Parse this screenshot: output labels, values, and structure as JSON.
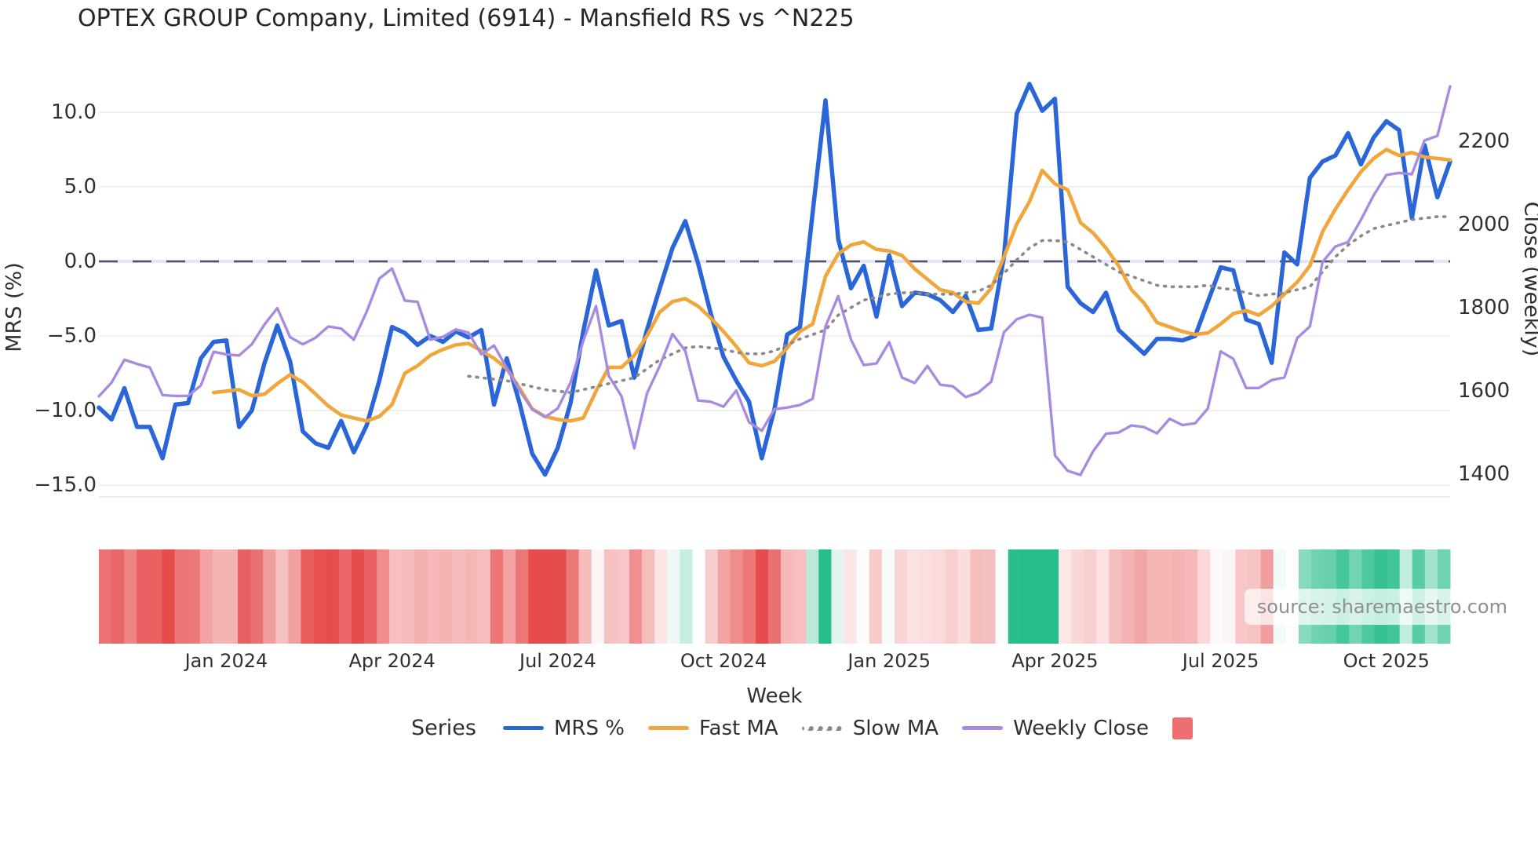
{
  "chart_data": {
    "type": "line",
    "title": "OPTEX GROUP Company, Limited (6914) - Mansfield RS vs ^N225",
    "xlabel": "Week",
    "ylabel_left": "MRS (%)",
    "ylabel_right": "Close (weekly)",
    "source": "source: sharemaestro.com",
    "legend_title": "Series",
    "weeks": 107,
    "x_ticks": [
      {
        "label": "Jan 2024",
        "week": 10
      },
      {
        "label": "Apr 2024",
        "week": 23
      },
      {
        "label": "Jul 2024",
        "week": 36
      },
      {
        "label": "Oct 2024",
        "week": 49
      },
      {
        "label": "Jan 2025",
        "week": 62
      },
      {
        "label": "Apr 2025",
        "week": 75
      },
      {
        "label": "Jul 2025",
        "week": 88
      },
      {
        "label": "Oct 2025",
        "week": 101
      }
    ],
    "y_left": {
      "ticks": [
        10.0,
        5.0,
        0.0,
        -5.0,
        -10.0,
        -15.0
      ],
      "zero_dashed": true,
      "range": [
        -15.8,
        12.6
      ]
    },
    "y_right": {
      "ticks": [
        2200,
        2000,
        1800,
        1600,
        1400
      ],
      "range": [
        1330,
        2350
      ]
    },
    "grid": true,
    "legend_position": "bottom",
    "zero_line_color": "#4d5266",
    "grid_color": "#e9ebef",
    "series": [
      {
        "name": "MRS %",
        "axis": "left",
        "color": "#2b66d9",
        "width": 5.5,
        "dash": "solid",
        "values": [
          -9.8,
          -10.6,
          -8.5,
          -11.1,
          -11.1,
          -13.2,
          -9.6,
          -9.5,
          -6.5,
          -5.4,
          -5.3,
          -11.1,
          -10.0,
          -6.8,
          -4.3,
          -6.7,
          -11.4,
          -12.2,
          -12.5,
          -10.7,
          -12.8,
          -11.0,
          -8.0,
          -4.4,
          -4.8,
          -5.6,
          -5.0,
          -5.4,
          -4.7,
          -5.1,
          -4.6,
          -9.6,
          -6.5,
          -9.5,
          -12.9,
          -14.3,
          -12.5,
          -9.5,
          -4.7,
          -0.6,
          -4.3,
          -4.0,
          -7.8,
          -4.6,
          -1.8,
          0.9,
          2.7,
          -0.1,
          -3.5,
          -6.4,
          -8.0,
          -9.4,
          -13.2,
          -9.9,
          -4.9,
          -4.4,
          3.3,
          10.8,
          1.5,
          -1.8,
          -0.3,
          -3.7,
          0.4,
          -3.0,
          -2.1,
          -2.2,
          -2.6,
          -3.4,
          -2.3,
          -4.6,
          -4.5,
          0.3,
          9.9,
          11.9,
          10.1,
          10.9,
          -1.7,
          -2.8,
          -3.4,
          -2.1,
          -4.6,
          -5.4,
          -6.2,
          -5.2,
          -5.2,
          -5.3,
          -5.0,
          -2.7,
          -0.4,
          -0.6,
          -3.9,
          -4.2,
          -6.8,
          0.6,
          -0.2,
          5.6,
          6.7,
          7.1,
          8.6,
          6.5,
          8.3,
          9.4,
          8.8,
          2.9,
          7.8,
          4.3,
          6.7
        ]
      },
      {
        "name": "Fast MA",
        "axis": "left",
        "color": "#f0a63b",
        "width": 4.6,
        "dash": "solid",
        "values": [
          null,
          null,
          null,
          null,
          null,
          null,
          null,
          null,
          null,
          -8.8,
          -8.7,
          -8.6,
          -9.0,
          -8.9,
          -8.2,
          -7.6,
          -8.1,
          -8.9,
          -9.7,
          -10.3,
          -10.5,
          -10.7,
          -10.4,
          -9.6,
          -7.5,
          -7.0,
          -6.3,
          -5.9,
          -5.6,
          -5.5,
          -6.0,
          -6.5,
          -7.2,
          -8.5,
          -9.9,
          -10.4,
          -10.6,
          -10.7,
          -10.5,
          -8.7,
          -7.1,
          -7.1,
          -6.3,
          -5.0,
          -3.4,
          -2.7,
          -2.5,
          -3.0,
          -3.8,
          -4.7,
          -5.7,
          -6.8,
          -7.0,
          -6.7,
          -5.8,
          -4.7,
          -4.2,
          -1.0,
          0.5,
          1.1,
          1.3,
          0.8,
          0.7,
          0.4,
          -0.5,
          -1.2,
          -1.9,
          -2.1,
          -2.7,
          -2.8,
          -1.8,
          0.3,
          2.5,
          4.0,
          6.1,
          5.2,
          4.8,
          2.6,
          1.9,
          0.9,
          -0.3,
          -1.9,
          -2.8,
          -4.1,
          -4.4,
          -4.7,
          -4.9,
          -4.8,
          -4.2,
          -3.5,
          -3.3,
          -3.6,
          -3.0,
          -2.2,
          -1.4,
          -0.3,
          2.0,
          3.5,
          4.8,
          6.0,
          6.9,
          7.5,
          7.1,
          7.3,
          7.0,
          6.9,
          6.8
        ]
      },
      {
        "name": "Slow MA",
        "axis": "left",
        "color": "#8a8a8a",
        "width": 3.6,
        "dash": "dotted",
        "values": [
          null,
          null,
          null,
          null,
          null,
          null,
          null,
          null,
          null,
          null,
          null,
          null,
          null,
          null,
          null,
          null,
          null,
          null,
          null,
          null,
          null,
          null,
          null,
          null,
          null,
          null,
          null,
          null,
          null,
          -7.7,
          -7.8,
          -7.9,
          -8.0,
          -8.2,
          -8.4,
          -8.6,
          -8.7,
          -8.8,
          -8.6,
          -8.4,
          -8.2,
          -8.0,
          -7.8,
          -7.2,
          -6.6,
          -6.2,
          -5.8,
          -5.7,
          -5.8,
          -5.9,
          -6.1,
          -6.2,
          -6.2,
          -6.0,
          -5.6,
          -5.2,
          -4.9,
          -4.6,
          -3.6,
          -3.1,
          -2.6,
          -2.4,
          -2.2,
          -2.1,
          -2.1,
          -2.2,
          -2.2,
          -2.2,
          -2.1,
          -2.0,
          -1.6,
          -0.8,
          0.1,
          0.9,
          1.4,
          1.4,
          1.3,
          0.8,
          0.3,
          -0.2,
          -0.7,
          -1.0,
          -1.3,
          -1.6,
          -1.7,
          -1.7,
          -1.7,
          -1.6,
          -1.8,
          -1.9,
          -2.1,
          -2.3,
          -2.2,
          -2.1,
          -1.9,
          -1.7,
          -0.7,
          0.3,
          1.1,
          1.7,
          2.2,
          2.4,
          2.6,
          2.8,
          2.9,
          3.0,
          3.0
        ]
      },
      {
        "name": "Weekly Close",
        "axis": "right",
        "color": "#a78be0",
        "width": 3.4,
        "dash": "solid",
        "values": [
          1587,
          1620,
          1675,
          1665,
          1656,
          1590,
          1588,
          1588,
          1613,
          1694,
          1688,
          1685,
          1712,
          1760,
          1799,
          1729,
          1712,
          1728,
          1755,
          1750,
          1723,
          1790,
          1870,
          1894,
          1817,
          1814,
          1723,
          1730,
          1748,
          1740,
          1688,
          1709,
          1655,
          1601,
          1556,
          1537,
          1558,
          1620,
          1720,
          1804,
          1636,
          1587,
          1462,
          1594,
          1660,
          1737,
          1696,
          1577,
          1574,
          1562,
          1601,
          1525,
          1504,
          1556,
          1560,
          1566,
          1581,
          1755,
          1828,
          1723,
          1662,
          1666,
          1717,
          1632,
          1619,
          1660,
          1615,
          1611,
          1585,
          1596,
          1622,
          1741,
          1772,
          1783,
          1776,
          1445,
          1408,
          1398,
          1455,
          1497,
          1500,
          1517,
          1513,
          1498,
          1533,
          1518,
          1522,
          1558,
          1695,
          1677,
          1607,
          1607,
          1626,
          1632,
          1727,
          1755,
          1910,
          1947,
          1958,
          2011,
          2070,
          2119,
          2124,
          2121,
          2202,
          2213,
          2332
        ]
      }
    ],
    "heatmap": {
      "source_series": "MRS %",
      "positive_color": "#28bd8c",
      "negative_color": "#e64c4c",
      "positive_saturation_at": 10,
      "negative_saturation_at": 12.5
    },
    "legend_extra_swatch_color": "#ee6f6f"
  }
}
